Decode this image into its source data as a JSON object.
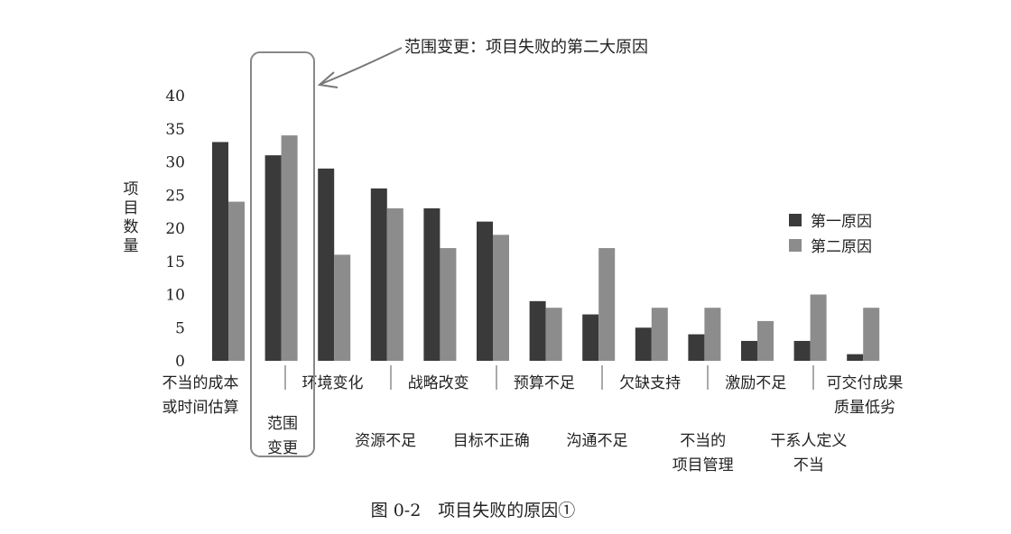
{
  "chart_data": {
    "type": "bar",
    "annotation": "范围变更：项目失败的第二大原因",
    "caption": "图 0-2　项目失败的原因①",
    "ylabel": "项目数量",
    "ylim": [
      0,
      40
    ],
    "yticks": [
      0,
      5,
      10,
      15,
      20,
      25,
      30,
      35,
      40
    ],
    "legend_position": "right",
    "grid": false,
    "categories": [
      "不当的成本或时间估算",
      "范围变更",
      "环境变化",
      "资源不足",
      "战略改变",
      "目标不正确",
      "预算不足",
      "沟通不足",
      "欠缺支持",
      "不当的项目管理",
      "激励不足",
      "干系人定义不当",
      "可交付成果质量低劣"
    ],
    "category_label_lines": [
      [
        "不当的成本",
        "或时间估算"
      ],
      [
        "范围",
        "变更"
      ],
      [
        "环境变化"
      ],
      [
        "资源不足"
      ],
      [
        "战略改变"
      ],
      [
        "目标不正确"
      ],
      [
        "预算不足"
      ],
      [
        "沟通不足"
      ],
      [
        "欠缺支持"
      ],
      [
        "不当的",
        "项目管理"
      ],
      [
        "激励不足"
      ],
      [
        "干系人定义",
        "不当"
      ],
      [
        "可交付成果",
        "质量低劣"
      ]
    ],
    "series": [
      {
        "name": "第一原因",
        "color": "#3a3a3a",
        "values": [
          33,
          31,
          29,
          26,
          23,
          21,
          9,
          7,
          5,
          4,
          3,
          3,
          1
        ]
      },
      {
        "name": "第二原因",
        "color": "#8c8c8c",
        "values": [
          24,
          34,
          16,
          23,
          17,
          19,
          8,
          17,
          8,
          8,
          6,
          10,
          8
        ]
      }
    ],
    "highlight_category": "范围变更"
  }
}
